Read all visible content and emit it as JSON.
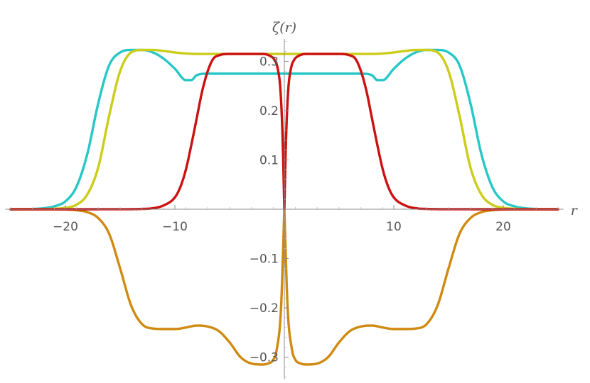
{
  "chart_data": {
    "type": "line",
    "title": "",
    "xlabel": "r",
    "ylabel": "ζ(r)",
    "xlim": [
      -25.5,
      25.5
    ],
    "ylim": [
      -0.345,
      0.345
    ],
    "grid": false,
    "legend": "none",
    "x_ticks": [
      {
        "value": -20,
        "label": "−20"
      },
      {
        "value": -10,
        "label": "−10"
      },
      {
        "value": 10,
        "label": "10"
      },
      {
        "value": 20,
        "label": "20"
      }
    ],
    "y_ticks": [
      {
        "value": -0.3,
        "label": "−0.3"
      },
      {
        "value": -0.2,
        "label": "−0.2"
      },
      {
        "value": -0.1,
        "label": "−0.1"
      },
      {
        "value": 0.1,
        "label": "0.1"
      },
      {
        "value": 0.2,
        "label": "0.2"
      },
      {
        "value": 0.3,
        "label": "0.3"
      }
    ],
    "series": [
      {
        "color": "#27c7c7",
        "x": [
          0,
          1,
          3,
          5,
          7,
          8,
          8.5,
          9,
          10,
          11,
          12,
          13,
          14,
          15,
          16,
          17,
          18,
          19,
          20,
          21,
          22,
          23,
          24,
          25
        ],
        "y": [
          0.275,
          0.275,
          0.275,
          0.275,
          0.275,
          0.272,
          0.262,
          0.262,
          0.285,
          0.305,
          0.318,
          0.323,
          0.323,
          0.318,
          0.292,
          0.215,
          0.112,
          0.045,
          0.016,
          0.006,
          0.002,
          0.0005,
          0.0001,
          0.0
        ]
      },
      {
        "color": "#cccc1b",
        "x": [
          0,
          1,
          2,
          5,
          8,
          9,
          10,
          11,
          12,
          13,
          14,
          15,
          16,
          17,
          18,
          19,
          20,
          21,
          22,
          23,
          24,
          25
        ],
        "y": [
          0.315,
          0.315,
          0.315,
          0.315,
          0.315,
          0.316,
          0.318,
          0.321,
          0.323,
          0.323,
          0.318,
          0.28,
          0.19,
          0.085,
          0.03,
          0.009,
          0.003,
          0.001,
          0.0003,
          0.0001,
          0.0,
          0.0
        ]
      },
      {
        "color": "#d08a12",
        "x": [
          0,
          0.3,
          0.7,
          1,
          1.5,
          2,
          3,
          4,
          5,
          6,
          7,
          8,
          9,
          10,
          11,
          12,
          13,
          14,
          15,
          16,
          17,
          18,
          19,
          20,
          21,
          22,
          23,
          24,
          25
        ],
        "y": [
          0.0,
          -0.2,
          -0.285,
          -0.305,
          -0.313,
          -0.315,
          -0.313,
          -0.3,
          -0.27,
          -0.247,
          -0.238,
          -0.236,
          -0.24,
          -0.243,
          -0.243,
          -0.242,
          -0.233,
          -0.195,
          -0.12,
          -0.05,
          -0.018,
          -0.006,
          -0.002,
          -0.0005,
          -0.0001,
          0.0,
          0.0,
          0.0,
          0.0
        ]
      },
      {
        "color": "#cc1111",
        "x": [
          0,
          0.15,
          0.35,
          0.6,
          0.9,
          1.3,
          2,
          3,
          4,
          5,
          6,
          6.5,
          7,
          7.5,
          8,
          8.5,
          9,
          9.5,
          10,
          11,
          12,
          13,
          15,
          20,
          25
        ],
        "y": [
          0.0,
          0.14,
          0.24,
          0.285,
          0.303,
          0.311,
          0.315,
          0.315,
          0.315,
          0.315,
          0.312,
          0.305,
          0.28,
          0.24,
          0.185,
          0.13,
          0.08,
          0.045,
          0.024,
          0.008,
          0.002,
          0.0006,
          0.0001,
          0.0,
          0.0
        ]
      }
    ]
  }
}
